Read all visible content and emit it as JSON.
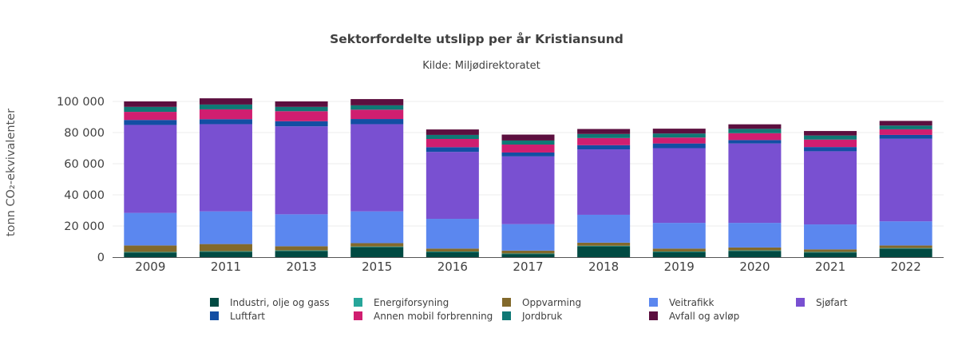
{
  "chart_data": {
    "type": "bar",
    "stacked": true,
    "title": "Sektorfordelte utslipp per år Kristiansund",
    "subtitle": "Kilde: Miljødirektoratet",
    "ylabel": "tonn CO₂-ekvivalenter",
    "xlabel": "",
    "ylim": [
      0,
      100000
    ],
    "yticks": [
      0,
      20000,
      40000,
      60000,
      80000,
      100000
    ],
    "ytick_labels": [
      "0",
      "20 000",
      "40 000",
      "60 000",
      "80 000",
      "100 000"
    ],
    "grid": true,
    "legend_position": "bottom",
    "categories": [
      "2009",
      "2011",
      "2013",
      "2015",
      "2016",
      "2017",
      "2018",
      "2019",
      "2020",
      "2021",
      "2022"
    ],
    "series": [
      {
        "name": "Industri, olje og gass",
        "color": "#004a42",
        "values": [
          3000,
          3500,
          4000,
          6500,
          3300,
          2000,
          7000,
          3300,
          4000,
          3000,
          5500
        ]
      },
      {
        "name": "Energiforsyning",
        "color": "#27a69a",
        "values": [
          300,
          300,
          300,
          300,
          300,
          300,
          300,
          300,
          300,
          300,
          300
        ]
      },
      {
        "name": "Oppvarming",
        "color": "#82692b",
        "values": [
          4200,
          4600,
          2700,
          2200,
          1900,
          1900,
          2000,
          1900,
          1900,
          1700,
          1700
        ]
      },
      {
        "name": "Veitrafikk",
        "color": "#5b87ef",
        "values": [
          20900,
          21000,
          20500,
          20400,
          19100,
          17000,
          17900,
          16500,
          15800,
          16000,
          15500
        ]
      },
      {
        "name": "Sjøfart",
        "color": "#7950d1",
        "values": [
          56500,
          56000,
          56500,
          56000,
          43000,
          43500,
          42000,
          48000,
          51000,
          47000,
          53000
        ]
      },
      {
        "name": "Luftfart",
        "color": "#134ea3",
        "values": [
          3200,
          3200,
          3300,
          3300,
          3000,
          2500,
          2700,
          3000,
          2200,
          2700,
          2500
        ]
      },
      {
        "name": "Annen mobil forbrenning",
        "color": "#d01e70",
        "values": [
          5200,
          6300,
          6400,
          6000,
          5300,
          5100,
          4600,
          3800,
          4400,
          4800,
          3600
        ]
      },
      {
        "name": "Jordbruk",
        "color": "#0f7875",
        "values": [
          3200,
          3100,
          2800,
          2800,
          2600,
          2600,
          2600,
          2600,
          2800,
          2600,
          2400
        ]
      },
      {
        "name": "Avfall og avløp",
        "color": "#5c0f3f",
        "values": [
          3500,
          4000,
          3500,
          4000,
          3500,
          3800,
          3200,
          3100,
          2900,
          2900,
          3000
        ]
      }
    ]
  }
}
